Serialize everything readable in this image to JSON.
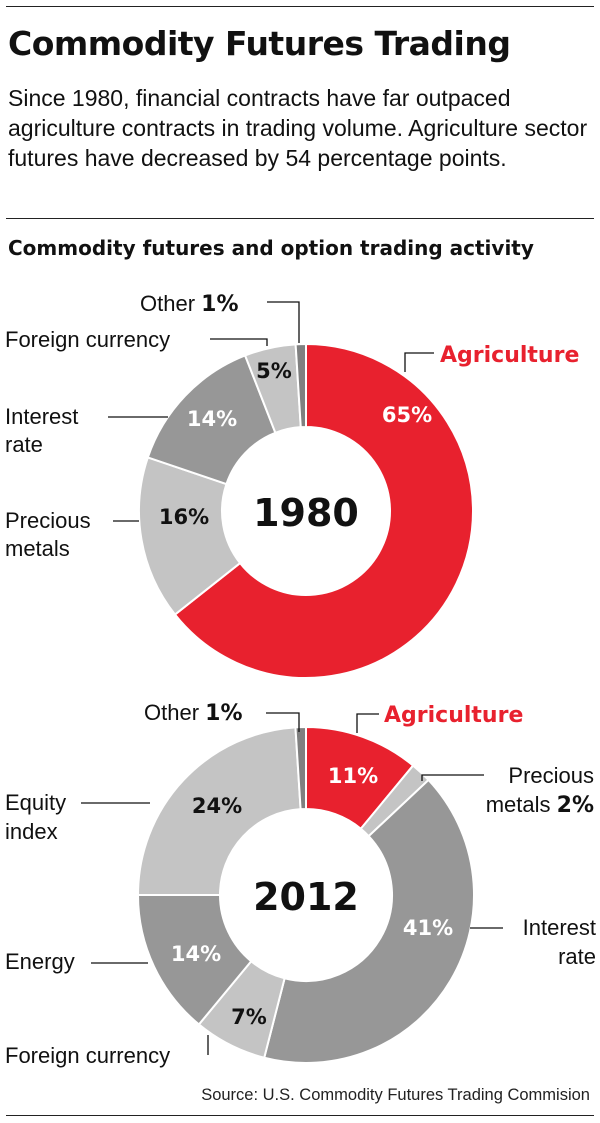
{
  "header": {
    "title": "Commodity Futures Trading",
    "deck": "Since 1980, financial contracts have far outpaced agriculture contracts in trading volume. Agriculture sector futures have decreased by 54 percentage points.",
    "chart_heading": "Commodity futures and option trading activity"
  },
  "source": "Source: U.S. Commodity Futures Trading Commision",
  "colors": {
    "agriculture": "#e8212e",
    "dark_gray": "#979797",
    "light_gray": "#c4c4c4",
    "other": "#808080",
    "background": "#ffffff"
  },
  "chart_data": [
    {
      "type": "pie",
      "center_label": "1980",
      "slices": [
        {
          "label": "Agriculture",
          "value": 65,
          "value_label": "65%",
          "color": "#e8212e",
          "label_color": "#e8212e",
          "value_inside": true
        },
        {
          "label": "Precious metals",
          "value": 16,
          "value_label": "16%",
          "color": "#c4c4c4",
          "value_inside": true
        },
        {
          "label": "Interest rate",
          "value": 14,
          "value_label": "14%",
          "color": "#979797",
          "value_inside": true
        },
        {
          "label": "Foreign currency",
          "value": 5,
          "value_label": "5%",
          "color": "#c4c4c4",
          "value_inside": true
        },
        {
          "label": "Other",
          "value": 1,
          "value_label": "1%",
          "color": "#808080",
          "value_inside": false
        }
      ]
    },
    {
      "type": "pie",
      "center_label": "2012",
      "slices": [
        {
          "label": "Agriculture",
          "value": 11,
          "value_label": "11%",
          "color": "#e8212e",
          "label_color": "#e8212e",
          "value_inside": true
        },
        {
          "label": "Precious metals",
          "value": 2,
          "value_label": "2%",
          "color": "#c4c4c4",
          "value_inside": false
        },
        {
          "label": "Interest rate",
          "value": 41,
          "value_label": "41%",
          "color": "#979797",
          "value_inside": true
        },
        {
          "label": "Foreign currency",
          "value": 7,
          "value_label": "7%",
          "color": "#c4c4c4",
          "value_inside": true
        },
        {
          "label": "Energy",
          "value": 14,
          "value_label": "14%",
          "color": "#979797",
          "value_inside": true
        },
        {
          "label": "Equity index",
          "value": 24,
          "value_label": "24%",
          "color": "#c4c4c4",
          "value_inside": true
        },
        {
          "label": "Other",
          "value": 1,
          "value_label": "1%",
          "color": "#808080",
          "value_inside": false
        }
      ]
    }
  ]
}
